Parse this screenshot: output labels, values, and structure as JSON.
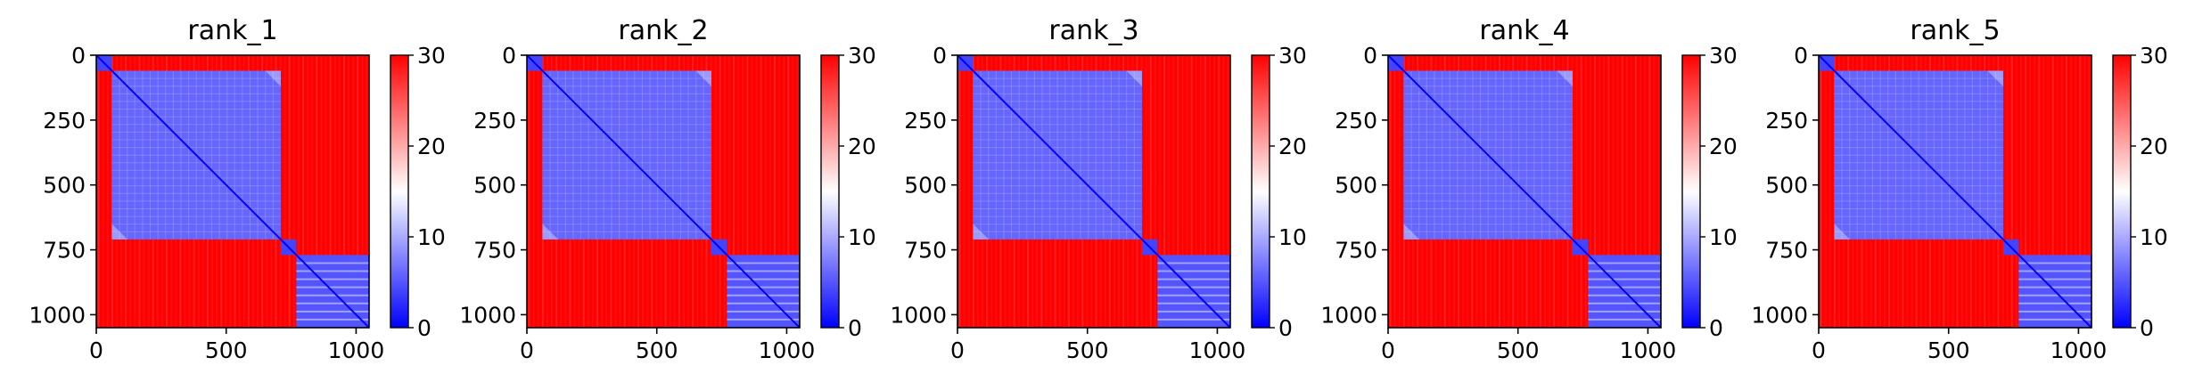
{
  "chart_data": [
    {
      "type": "heatmap",
      "title": "rank_1",
      "colormap": "bwr",
      "x_ticks": [
        0,
        500,
        1000
      ],
      "y_ticks": [
        0,
        250,
        500,
        750,
        1000
      ],
      "xlim": [
        0,
        1050
      ],
      "ylim": [
        1050,
        0
      ],
      "colorbar": {
        "range": [
          0,
          30
        ],
        "ticks": [
          0,
          10,
          20,
          30
        ]
      },
      "blocks": [
        {
          "range": [
            0,
            60
          ],
          "value": 4
        },
        {
          "range": [
            60,
            710
          ],
          "value": 6
        },
        {
          "range": [
            710,
            770
          ],
          "value": 4
        },
        {
          "range": [
            770,
            1050
          ],
          "value": 5
        }
      ],
      "background_value": 30
    },
    {
      "type": "heatmap",
      "title": "rank_2",
      "colormap": "bwr",
      "x_ticks": [
        0,
        500,
        1000
      ],
      "y_ticks": [
        0,
        250,
        500,
        750,
        1000
      ],
      "xlim": [
        0,
        1050
      ],
      "ylim": [
        1050,
        0
      ],
      "colorbar": {
        "range": [
          0,
          30
        ],
        "ticks": [
          0,
          10,
          20,
          30
        ]
      },
      "blocks": [
        {
          "range": [
            0,
            60
          ],
          "value": 4
        },
        {
          "range": [
            60,
            710
          ],
          "value": 6
        },
        {
          "range": [
            710,
            770
          ],
          "value": 4
        },
        {
          "range": [
            770,
            1050
          ],
          "value": 5
        }
      ],
      "background_value": 30
    },
    {
      "type": "heatmap",
      "title": "rank_3",
      "colormap": "bwr",
      "x_ticks": [
        0,
        500,
        1000
      ],
      "y_ticks": [
        0,
        250,
        500,
        750,
        1000
      ],
      "xlim": [
        0,
        1050
      ],
      "ylim": [
        1050,
        0
      ],
      "colorbar": {
        "range": [
          0,
          30
        ],
        "ticks": [
          0,
          10,
          20,
          30
        ]
      },
      "blocks": [
        {
          "range": [
            0,
            60
          ],
          "value": 4
        },
        {
          "range": [
            60,
            710
          ],
          "value": 6
        },
        {
          "range": [
            710,
            770
          ],
          "value": 4
        },
        {
          "range": [
            770,
            1050
          ],
          "value": 5
        }
      ],
      "background_value": 30
    },
    {
      "type": "heatmap",
      "title": "rank_4",
      "colormap": "bwr",
      "x_ticks": [
        0,
        500,
        1000
      ],
      "y_ticks": [
        0,
        250,
        500,
        750,
        1000
      ],
      "xlim": [
        0,
        1050
      ],
      "ylim": [
        1050,
        0
      ],
      "colorbar": {
        "range": [
          0,
          30
        ],
        "ticks": [
          0,
          10,
          20,
          30
        ]
      },
      "blocks": [
        {
          "range": [
            0,
            60
          ],
          "value": 4
        },
        {
          "range": [
            60,
            710
          ],
          "value": 6
        },
        {
          "range": [
            710,
            770
          ],
          "value": 4
        },
        {
          "range": [
            770,
            1050
          ],
          "value": 5
        }
      ],
      "background_value": 30
    },
    {
      "type": "heatmap",
      "title": "rank_5",
      "colormap": "bwr",
      "x_ticks": [
        0,
        500,
        1000
      ],
      "y_ticks": [
        0,
        250,
        500,
        750,
        1000
      ],
      "xlim": [
        0,
        1050
      ],
      "ylim": [
        1050,
        0
      ],
      "colorbar": {
        "range": [
          0,
          30
        ],
        "ticks": [
          0,
          10,
          20,
          30
        ]
      },
      "blocks": [
        {
          "range": [
            0,
            60
          ],
          "value": 4
        },
        {
          "range": [
            60,
            710
          ],
          "value": 6
        },
        {
          "range": [
            710,
            770
          ],
          "value": 4
        },
        {
          "range": [
            770,
            1050
          ],
          "value": 5
        }
      ],
      "background_value": 30
    }
  ],
  "colors": {
    "low": "#0000ff",
    "mid": "#ffffff",
    "high": "#ff0000"
  }
}
